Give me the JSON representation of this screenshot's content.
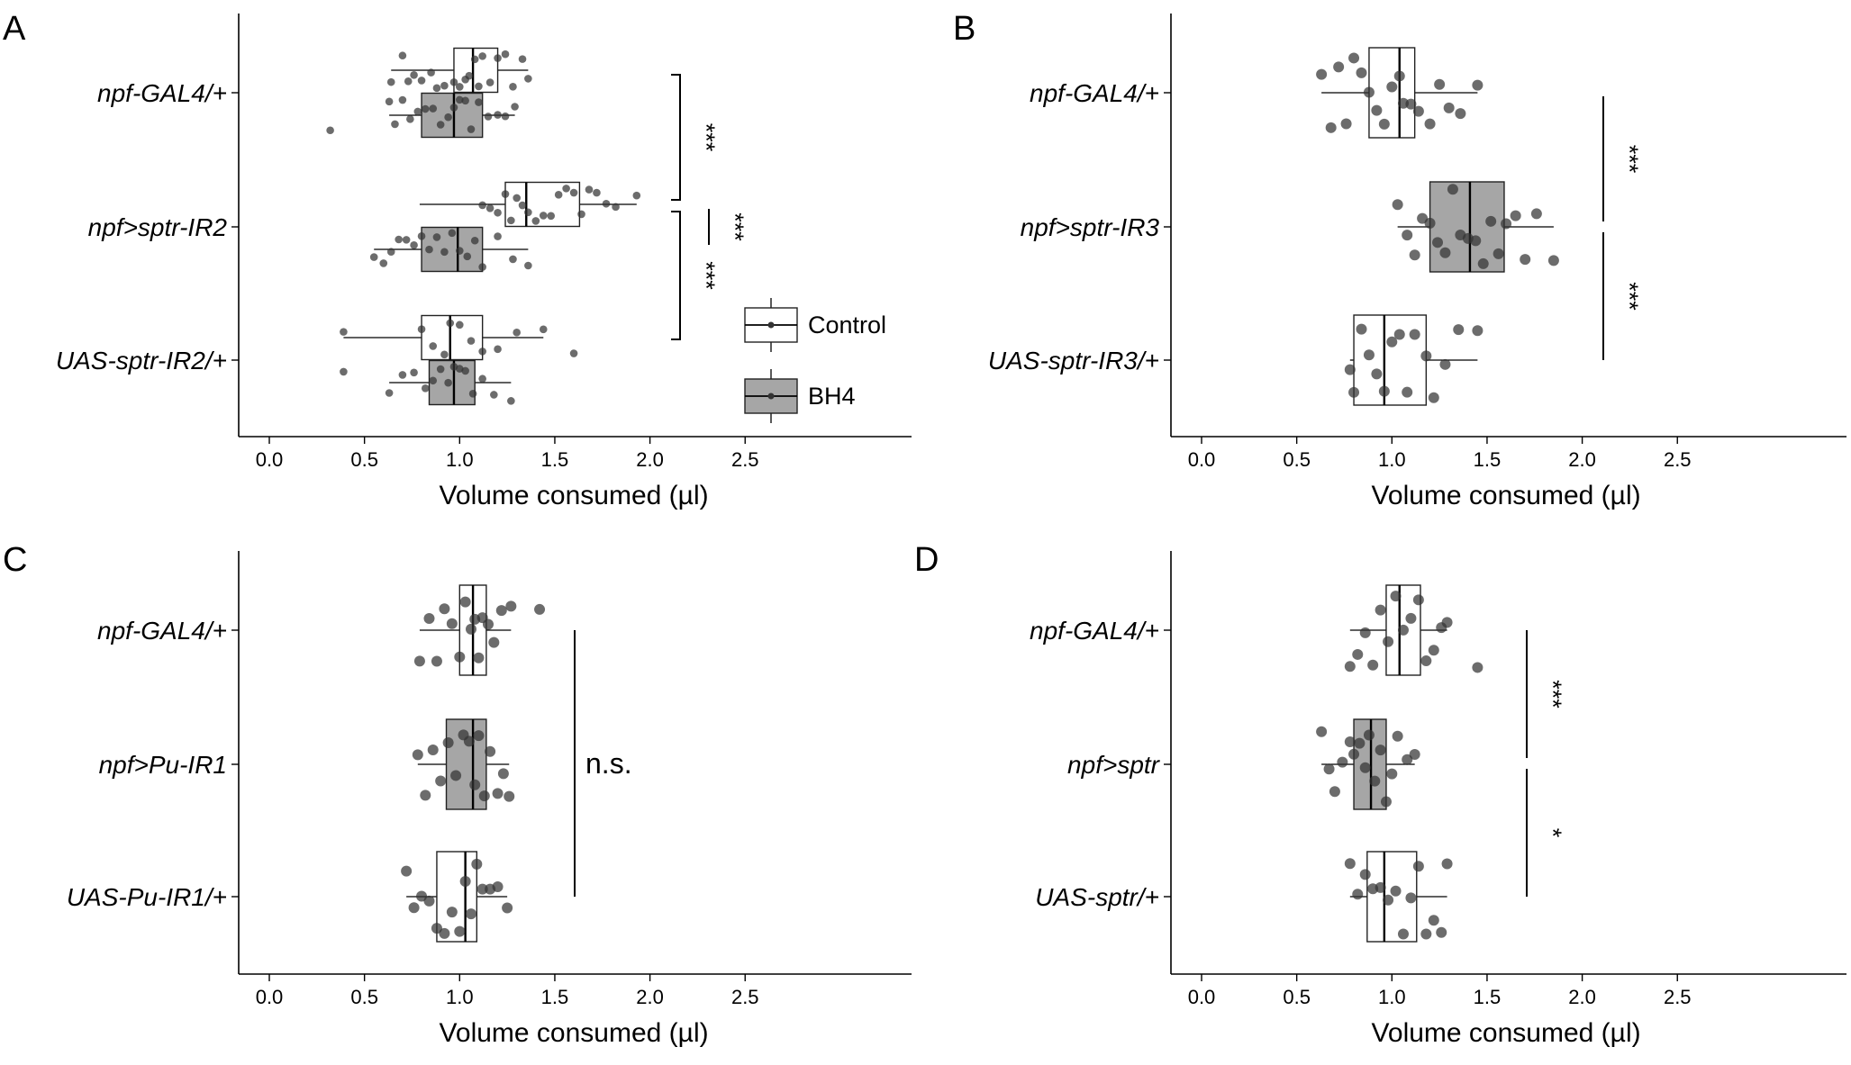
{
  "colors": {
    "control": "#ffffff",
    "bh4": "#a6a6a6",
    "point": "#333333",
    "line": "#000000"
  },
  "legend": {
    "items": [
      {
        "label": "Control",
        "fill": "#ffffff"
      },
      {
        "label": "BH4",
        "fill": "#a6a6a6"
      }
    ]
  },
  "chart_data": [
    {
      "panel": "A",
      "type": "boxplot",
      "orientation": "horizontal",
      "xlabel": "Volume consumed (µl)",
      "xlim": [
        -0.15,
        3.35
      ],
      "xticks": [
        "0.0",
        "0.5",
        "1.0",
        "1.5",
        "2.0",
        "2.5"
      ],
      "categories": [
        "npf-GAL4/+",
        "npf>sptr-IR2",
        "UAS-sptr-IR2/+"
      ],
      "boxes": [
        {
          "category": "npf-GAL4/+",
          "group": "Control",
          "whisker_low": 0.64,
          "q1": 0.97,
          "median": 1.07,
          "q3": 1.2,
          "whisker_high": 1.36
        },
        {
          "category": "npf-GAL4/+",
          "group": "BH4",
          "whisker_low": 0.63,
          "q1": 0.8,
          "median": 0.97,
          "q3": 1.12,
          "whisker_high": 1.29
        },
        {
          "category": "npf>sptr-IR2",
          "group": "Control",
          "whisker_low": 0.79,
          "q1": 1.24,
          "median": 1.35,
          "q3": 1.63,
          "whisker_high": 1.93
        },
        {
          "category": "npf>sptr-IR2",
          "group": "BH4",
          "whisker_low": 0.55,
          "q1": 0.8,
          "median": 0.99,
          "q3": 1.12,
          "whisker_high": 1.36
        },
        {
          "category": "UAS-sptr-IR2/+",
          "group": "Control",
          "whisker_low": 0.39,
          "q1": 0.8,
          "median": 0.95,
          "q3": 1.12,
          "whisker_high": 1.44
        },
        {
          "category": "UAS-sptr-IR2/+",
          "group": "BH4",
          "whisker_low": 0.63,
          "q1": 0.84,
          "median": 0.97,
          "q3": 1.08,
          "whisker_high": 1.27
        }
      ],
      "points": [
        {
          "category": "npf-GAL4/+",
          "group": "Control",
          "values": [
            0.64,
            0.7,
            0.73,
            0.76,
            0.8,
            0.85,
            0.88,
            0.92,
            0.97,
            1.0,
            1.03,
            1.05,
            1.08,
            1.1,
            1.12,
            1.16,
            1.2,
            1.24,
            1.28,
            1.33,
            1.36
          ]
        },
        {
          "category": "npf-GAL4/+",
          "group": "BH4",
          "values": [
            0.32,
            0.63,
            0.66,
            0.7,
            0.74,
            0.78,
            0.82,
            0.86,
            0.9,
            0.94,
            0.97,
            1.0,
            1.03,
            1.06,
            1.1,
            1.15,
            1.2,
            1.24,
            1.29
          ]
        },
        {
          "category": "npf>sptr-IR2",
          "group": "Control",
          "values": [
            1.12,
            1.16,
            1.2,
            1.24,
            1.27,
            1.3,
            1.33,
            1.36,
            1.4,
            1.44,
            1.48,
            1.52,
            1.56,
            1.6,
            1.64,
            1.68,
            1.72,
            1.77,
            1.82,
            1.93
          ]
        },
        {
          "category": "npf>sptr-IR2",
          "group": "BH4",
          "values": [
            0.55,
            0.6,
            0.64,
            0.68,
            0.72,
            0.76,
            0.8,
            0.84,
            0.88,
            0.92,
            0.96,
            1.0,
            1.04,
            1.08,
            1.12,
            1.2,
            1.28,
            1.36
          ]
        },
        {
          "category": "UAS-sptr-IR2/+",
          "group": "Control",
          "values": [
            0.39,
            0.8,
            0.86,
            0.92,
            0.95,
            1.0,
            1.06,
            1.12,
            1.2,
            1.3,
            1.44,
            1.6
          ]
        },
        {
          "category": "UAS-sptr-IR2/+",
          "group": "BH4",
          "values": [
            0.39,
            0.63,
            0.7,
            0.76,
            0.82,
            0.86,
            0.9,
            0.94,
            0.97,
            1.0,
            1.03,
            1.07,
            1.12,
            1.18,
            1.27
          ]
        }
      ],
      "significance": [
        {
          "between": [
            "npf-GAL4/+",
            "npf>sptr-IR2"
          ],
          "label": "***",
          "style": "bracket"
        },
        {
          "between": [
            "npf>sptr-IR2",
            "UAS-sptr-IR2/+"
          ],
          "label": "***",
          "style": "bracket"
        },
        {
          "between": [
            "npf>sptr-IR2 Control",
            "npf>sptr-IR2 BH4"
          ],
          "label": "***",
          "style": "line"
        }
      ]
    },
    {
      "panel": "B",
      "type": "boxplot",
      "orientation": "horizontal",
      "xlabel": "Volume consumed (µl)",
      "xlim": [
        -0.15,
        3.35
      ],
      "xticks": [
        "0.0",
        "0.5",
        "1.0",
        "1.5",
        "2.0",
        "2.5"
      ],
      "categories": [
        "npf-GAL4/+",
        "npf>sptr-IR3",
        "UAS-sptr-IR3/+"
      ],
      "boxes": [
        {
          "category": "npf-GAL4/+",
          "group": "Control",
          "whisker_low": 0.63,
          "q1": 0.88,
          "median": 1.04,
          "q3": 1.12,
          "whisker_high": 1.45
        },
        {
          "category": "npf>sptr-IR3",
          "group": "BH4",
          "whisker_low": 1.03,
          "q1": 1.2,
          "median": 1.41,
          "q3": 1.59,
          "whisker_high": 1.85
        },
        {
          "category": "UAS-sptr-IR3/+",
          "group": "Control",
          "whisker_low": 0.78,
          "q1": 0.8,
          "median": 0.96,
          "q3": 1.18,
          "whisker_high": 1.45
        }
      ],
      "points": [
        {
          "category": "npf-GAL4/+",
          "group": "Control",
          "values": [
            0.63,
            0.68,
            0.72,
            0.76,
            0.8,
            0.84,
            0.88,
            0.92,
            0.96,
            1.0,
            1.04,
            1.06,
            1.1,
            1.14,
            1.2,
            1.25,
            1.3,
            1.36,
            1.45
          ]
        },
        {
          "category": "npf>sptr-IR3",
          "group": "BH4",
          "values": [
            1.03,
            1.08,
            1.12,
            1.16,
            1.2,
            1.24,
            1.28,
            1.32,
            1.36,
            1.4,
            1.44,
            1.48,
            1.52,
            1.56,
            1.6,
            1.65,
            1.7,
            1.76,
            1.85
          ]
        },
        {
          "category": "UAS-sptr-IR3/+",
          "group": "Control",
          "values": [
            0.78,
            0.8,
            0.84,
            0.88,
            0.92,
            0.96,
            1.0,
            1.04,
            1.08,
            1.12,
            1.18,
            1.22,
            1.28,
            1.35,
            1.45
          ]
        }
      ],
      "significance": [
        {
          "between": [
            "npf-GAL4/+",
            "npf>sptr-IR3"
          ],
          "label": "***",
          "style": "line"
        },
        {
          "between": [
            "npf>sptr-IR3",
            "UAS-sptr-IR3/+"
          ],
          "label": "***",
          "style": "line"
        }
      ]
    },
    {
      "panel": "C",
      "type": "boxplot",
      "orientation": "horizontal",
      "xlabel": "Volume consumed (µl)",
      "xlim": [
        -0.15,
        3.35
      ],
      "xticks": [
        "0.0",
        "0.5",
        "1.0",
        "1.5",
        "2.0",
        "2.5"
      ],
      "categories": [
        "npf-GAL4/+",
        "npf>Pu-IR1",
        "UAS-Pu-IR1/+"
      ],
      "boxes": [
        {
          "category": "npf-GAL4/+",
          "group": "Control",
          "whisker_low": 0.79,
          "q1": 1.0,
          "median": 1.07,
          "q3": 1.14,
          "whisker_high": 1.27
        },
        {
          "category": "npf>Pu-IR1",
          "group": "BH4",
          "whisker_low": 0.78,
          "q1": 0.93,
          "median": 1.07,
          "q3": 1.14,
          "whisker_high": 1.26
        },
        {
          "category": "UAS-Pu-IR1/+",
          "group": "Control",
          "whisker_low": 0.72,
          "q1": 0.88,
          "median": 1.03,
          "q3": 1.09,
          "whisker_high": 1.25
        }
      ],
      "points": [
        {
          "category": "npf-GAL4/+",
          "group": "Control",
          "values": [
            0.79,
            0.84,
            0.88,
            0.92,
            0.96,
            1.0,
            1.03,
            1.06,
            1.08,
            1.1,
            1.12,
            1.15,
            1.18,
            1.22,
            1.27,
            1.42
          ]
        },
        {
          "category": "npf>Pu-IR1",
          "group": "BH4",
          "values": [
            0.78,
            0.82,
            0.86,
            0.9,
            0.94,
            0.98,
            1.02,
            1.05,
            1.08,
            1.1,
            1.13,
            1.16,
            1.2,
            1.23,
            1.26
          ]
        },
        {
          "category": "UAS-Pu-IR1/+",
          "group": "Control",
          "values": [
            0.72,
            0.76,
            0.8,
            0.84,
            0.88,
            0.92,
            0.96,
            1.0,
            1.03,
            1.06,
            1.09,
            1.12,
            1.16,
            1.2,
            1.25
          ]
        }
      ],
      "significance": [
        {
          "between": [
            "npf-GAL4/+",
            "UAS-Pu-IR1/+"
          ],
          "label": "n.s.",
          "style": "line"
        }
      ]
    },
    {
      "panel": "D",
      "type": "boxplot",
      "orientation": "horizontal",
      "xlabel": "Volume consumed (µl)",
      "xlim": [
        -0.15,
        3.35
      ],
      "xticks": [
        "0.0",
        "0.5",
        "1.0",
        "1.5",
        "2.0",
        "2.5"
      ],
      "categories": [
        "npf-GAL4/+",
        "npf>sptr",
        "UAS-sptr/+"
      ],
      "boxes": [
        {
          "category": "npf-GAL4/+",
          "group": "Control",
          "whisker_low": 0.78,
          "q1": 0.97,
          "median": 1.04,
          "q3": 1.15,
          "whisker_high": 1.29
        },
        {
          "category": "npf>sptr",
          "group": "BH4",
          "whisker_low": 0.63,
          "q1": 0.8,
          "median": 0.89,
          "q3": 0.97,
          "whisker_high": 1.12
        },
        {
          "category": "UAS-sptr/+",
          "group": "Control",
          "whisker_low": 0.78,
          "q1": 0.87,
          "median": 0.96,
          "q3": 1.13,
          "whisker_high": 1.29
        }
      ],
      "points": [
        {
          "category": "npf-GAL4/+",
          "group": "Control",
          "values": [
            0.78,
            0.82,
            0.86,
            0.9,
            0.94,
            0.98,
            1.02,
            1.06,
            1.1,
            1.14,
            1.18,
            1.22,
            1.26,
            1.29,
            1.45
          ]
        },
        {
          "category": "npf>sptr",
          "group": "BH4",
          "values": [
            0.63,
            0.67,
            0.7,
            0.74,
            0.78,
            0.8,
            0.83,
            0.86,
            0.88,
            0.91,
            0.94,
            0.97,
            1.0,
            1.03,
            1.08,
            1.12
          ]
        },
        {
          "category": "UAS-sptr/+",
          "group": "Control",
          "values": [
            0.78,
            0.82,
            0.86,
            0.9,
            0.94,
            0.98,
            1.02,
            1.06,
            1.1,
            1.14,
            1.18,
            1.22,
            1.26,
            1.29
          ]
        }
      ],
      "significance": [
        {
          "between": [
            "npf-GAL4/+",
            "npf>sptr"
          ],
          "label": "***",
          "style": "line"
        },
        {
          "between": [
            "npf>sptr",
            "UAS-sptr/+"
          ],
          "label": "*",
          "style": "line"
        }
      ]
    }
  ]
}
